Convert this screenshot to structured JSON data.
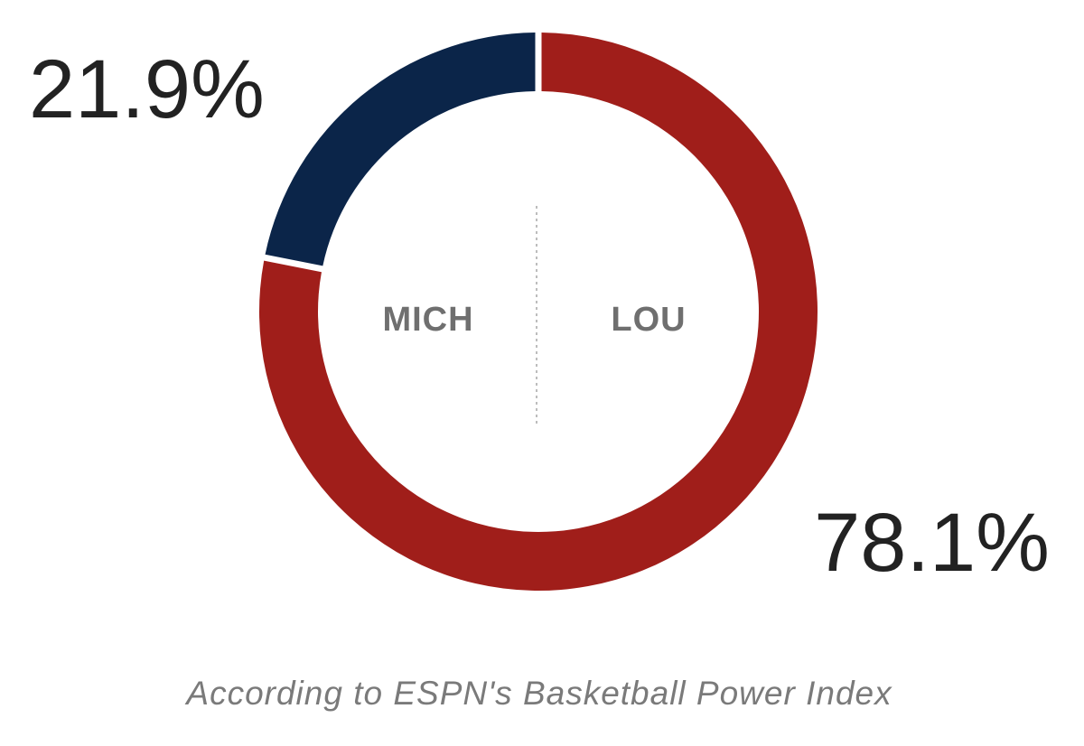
{
  "chart_data": {
    "type": "pie",
    "donut": true,
    "slices": [
      {
        "team": "MICH",
        "value": 21.9,
        "label": "21.9%",
        "color": "#0b2549"
      },
      {
        "team": "LOU",
        "value": 78.1,
        "label": "78.1%",
        "color": "#a01e1a"
      }
    ],
    "center_divider": true,
    "caption": "According to ESPN's Basketball Power Index"
  }
}
